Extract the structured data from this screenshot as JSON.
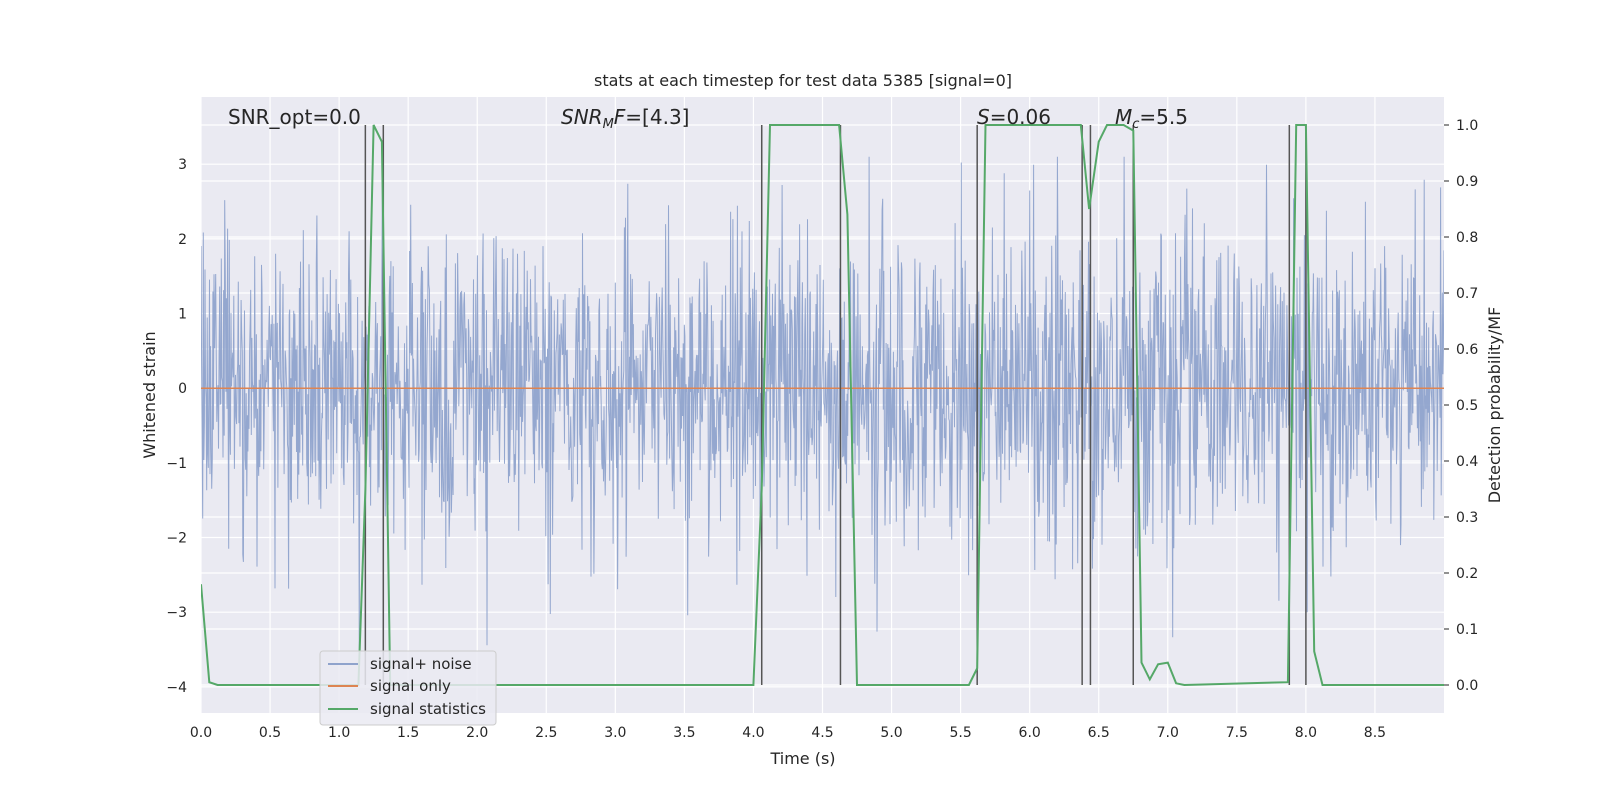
{
  "chart_data": {
    "type": "line",
    "title": "stats at each timestep for test data 5385 [signal=0]",
    "xlabel": "Time (s)",
    "ylabel": "Whitened strain",
    "y2label": "Detection probability/MF",
    "xlim": [
      0.0,
      9.0
    ],
    "ylim": [
      -4.35,
      3.9
    ],
    "y2lim": [
      -0.05,
      1.05
    ],
    "x_ticks": [
      "0.0",
      "0.5",
      "1.0",
      "1.5",
      "2.0",
      "2.5",
      "3.0",
      "3.5",
      "4.0",
      "4.5",
      "5.0",
      "5.5",
      "6.0",
      "6.5",
      "7.0",
      "7.5",
      "8.0",
      "8.5"
    ],
    "y_ticks": [
      "3",
      "2",
      "1",
      "0",
      "−1",
      "−2",
      "−3",
      "−4"
    ],
    "y2_ticks": [
      "1.0",
      "0.9",
      "0.8",
      "0.7",
      "0.6",
      "0.5",
      "0.4",
      "0.3",
      "0.2",
      "0.1",
      "0.0"
    ],
    "grid": true,
    "legend_position": "lower-left",
    "annotations": [
      {
        "text": "SNR_opt=0.0",
        "x": 0.2
      },
      {
        "text": "SNR_MF=[4.3]",
        "x": 2.6
      },
      {
        "text": "S=0.06",
        "x": 5.6
      },
      {
        "text": "M_c=5.5",
        "x": 6.6
      }
    ],
    "series": [
      {
        "name": "signal+ noise",
        "color": "#8fa3cc",
        "axis": "left",
        "description_kind": "noise",
        "stats": {
          "mean": 0.0,
          "std": 1.0,
          "min": -4.0,
          "max": 3.1,
          "n_points": 2200
        }
      },
      {
        "name": "signal only",
        "color": "#dd8452",
        "axis": "left",
        "x": [
          0.0,
          9.0
        ],
        "values": [
          0.0,
          0.0
        ]
      },
      {
        "name": "signal statistics",
        "color": "#55a868",
        "axis": "right",
        "x": [
          0.0,
          0.06,
          0.12,
          1.14,
          1.19,
          1.25,
          1.31,
          1.37,
          4.0,
          4.06,
          4.12,
          4.62,
          4.68,
          4.75,
          5.56,
          5.62,
          5.68,
          6.37,
          6.43,
          6.5,
          6.56,
          6.62,
          6.68,
          6.75,
          6.81,
          6.87,
          6.93,
          7.0,
          7.06,
          7.12,
          7.87,
          7.93,
          8.0,
          8.06,
          8.12,
          9.0
        ],
        "values": [
          0.18,
          0.005,
          0.0,
          0.0,
          0.35,
          1.0,
          0.97,
          0.0,
          0.0,
          0.35,
          1.0,
          1.0,
          0.84,
          0.0,
          0.0,
          0.03,
          1.0,
          1.0,
          0.85,
          0.97,
          1.0,
          1.0,
          1.0,
          0.99,
          0.04,
          0.01,
          0.037,
          0.04,
          0.003,
          0.0,
          0.005,
          1.0,
          1.0,
          0.06,
          0.0,
          0.0
        ]
      }
    ],
    "vertical_lines_x": [
      1.19,
      1.32,
      4.06,
      4.63,
      5.62,
      6.38,
      6.44,
      6.75,
      7.88,
      8.0
    ]
  },
  "colors": {
    "plot_background": "#eaeaf2",
    "grid": "#ffffff",
    "vline": "#555555"
  }
}
